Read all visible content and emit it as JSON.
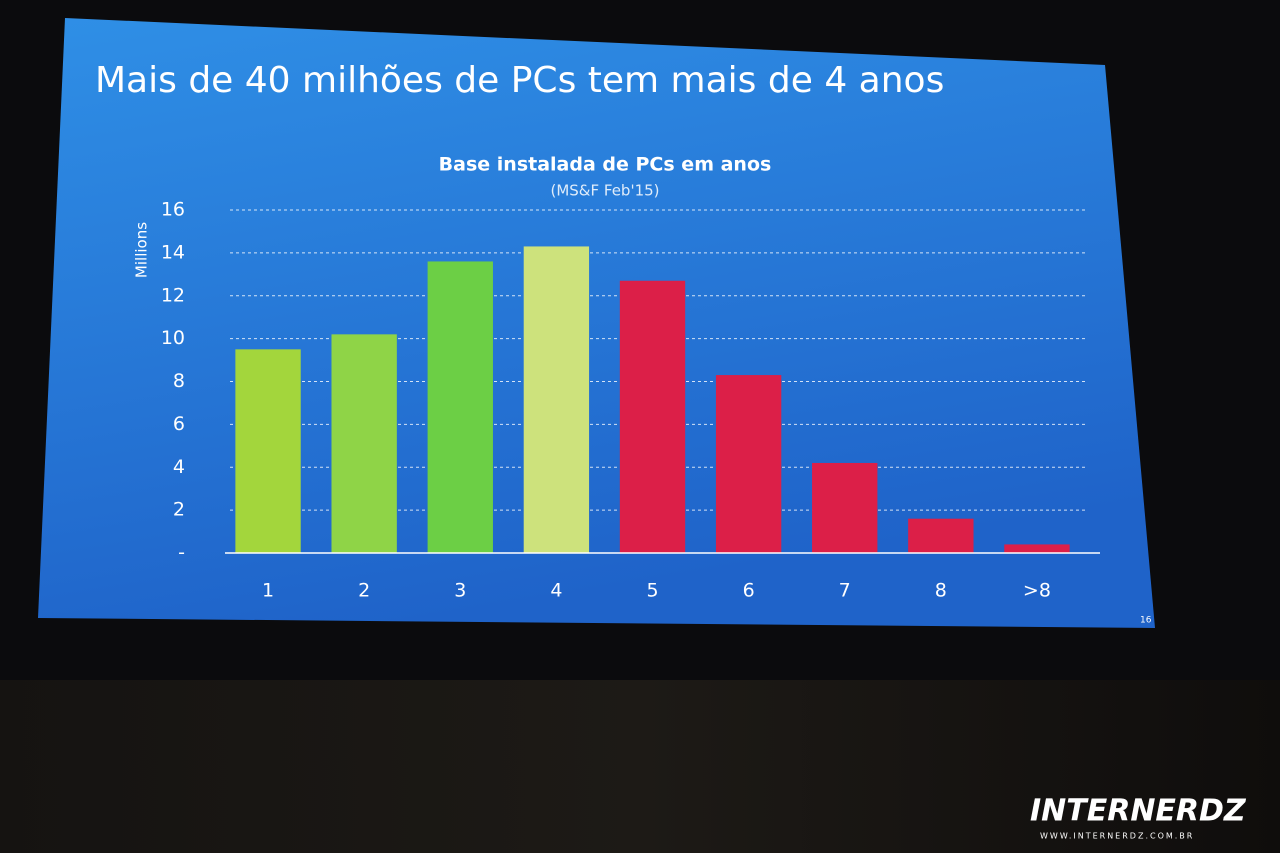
{
  "slide_title": "Mais de 40 milhões de PCs tem mais de 4 anos",
  "page_number": "16",
  "watermark": {
    "brand": "INTERNERDZ",
    "url": "WWW.INTERNERDZ.COM.BR"
  },
  "chart_data": {
    "type": "bar",
    "title": "Base instalada de PCs em anos",
    "subtitle": "(MS&F Feb'15)",
    "y_label": "Millions",
    "categories": [
      "1",
      "2",
      "3",
      "4",
      "5",
      "6",
      "7",
      "8",
      ">8"
    ],
    "values": [
      9.5,
      10.2,
      13.6,
      14.3,
      12.7,
      8.3,
      4.2,
      1.6,
      0.4
    ],
    "colors": [
      "#a3d63c",
      "#8fd447",
      "#6ccf45",
      "#cde27c",
      "#dc1f48",
      "#dc1f48",
      "#dc1f48",
      "#dc1f48",
      "#dc1f48"
    ],
    "ylim": [
      0,
      16
    ],
    "yticks": [
      {
        "value": 0,
        "label": "-"
      },
      2,
      4,
      6,
      8,
      10,
      12,
      14,
      16
    ],
    "grid": true
  }
}
